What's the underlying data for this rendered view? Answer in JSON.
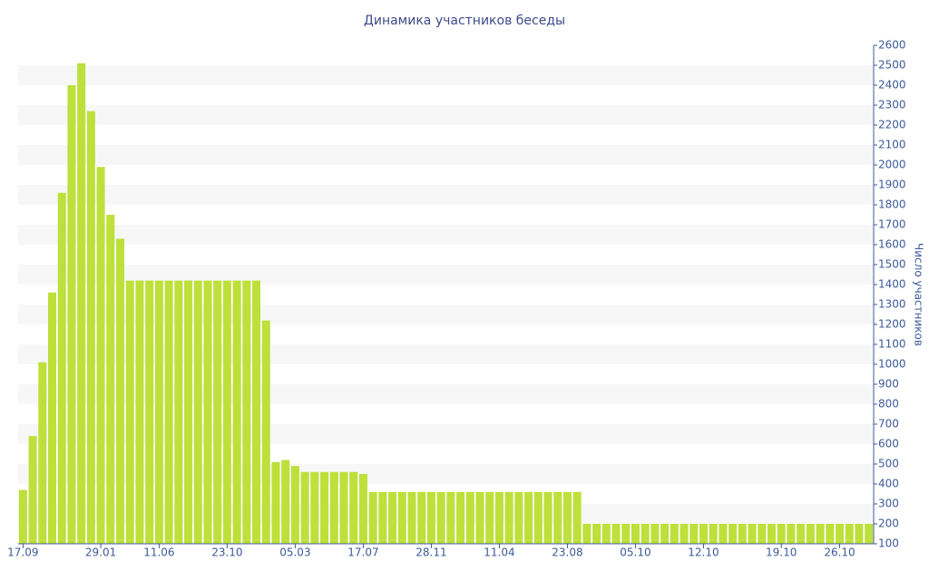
{
  "chart_data": {
    "type": "bar",
    "title": "Динамика участников беседы",
    "y_label": "Число участников",
    "color": "#bde03a",
    "grid": true,
    "categories": [
      "17.09",
      null,
      null,
      null,
      null,
      null,
      null,
      null,
      "29.01",
      null,
      null,
      null,
      null,
      null,
      "11.06",
      null,
      null,
      null,
      null,
      null,
      null,
      "23.10",
      null,
      null,
      null,
      null,
      null,
      null,
      "05.03",
      null,
      null,
      null,
      null,
      null,
      null,
      "17.07",
      null,
      null,
      null,
      null,
      null,
      null,
      "28.11",
      null,
      null,
      null,
      null,
      null,
      null,
      "11.04",
      null,
      null,
      null,
      null,
      null,
      null,
      "23.08",
      null,
      null,
      null,
      null,
      null,
      null,
      "05.10",
      null,
      null,
      null,
      null,
      null,
      null,
      "12.10",
      null,
      null,
      null,
      null,
      null,
      null,
      null,
      "19.10",
      null,
      null,
      null,
      null,
      null,
      "26.10",
      null,
      null,
      null
    ],
    "values": [
      370,
      640,
      1010,
      1360,
      1860,
      2400,
      2510,
      2270,
      1990,
      1750,
      1630,
      1420,
      1420,
      1420,
      1420,
      1420,
      1420,
      1420,
      1420,
      1420,
      1420,
      1420,
      1420,
      1420,
      1420,
      1220,
      510,
      520,
      490,
      460,
      460,
      460,
      460,
      460,
      460,
      450,
      360,
      360,
      360,
      360,
      360,
      360,
      360,
      360,
      360,
      360,
      360,
      360,
      360,
      360,
      360,
      360,
      360,
      360,
      360,
      360,
      360,
      360,
      200,
      200,
      200,
      200,
      200,
      200,
      200,
      200,
      200,
      200,
      200,
      200,
      200,
      200,
      200,
      200,
      200,
      200,
      200,
      200,
      200,
      200,
      200,
      200,
      200,
      200,
      200,
      200,
      200,
      200
    ],
    "ylim": [
      100,
      2600
    ],
    "yticks": [
      100,
      200,
      300,
      400,
      500,
      600,
      700,
      800,
      900,
      1000,
      1100,
      1200,
      1300,
      1400,
      1500,
      1600,
      1700,
      1800,
      1900,
      2000,
      2100,
      2200,
      2300,
      2400,
      2500,
      2600
    ]
  }
}
